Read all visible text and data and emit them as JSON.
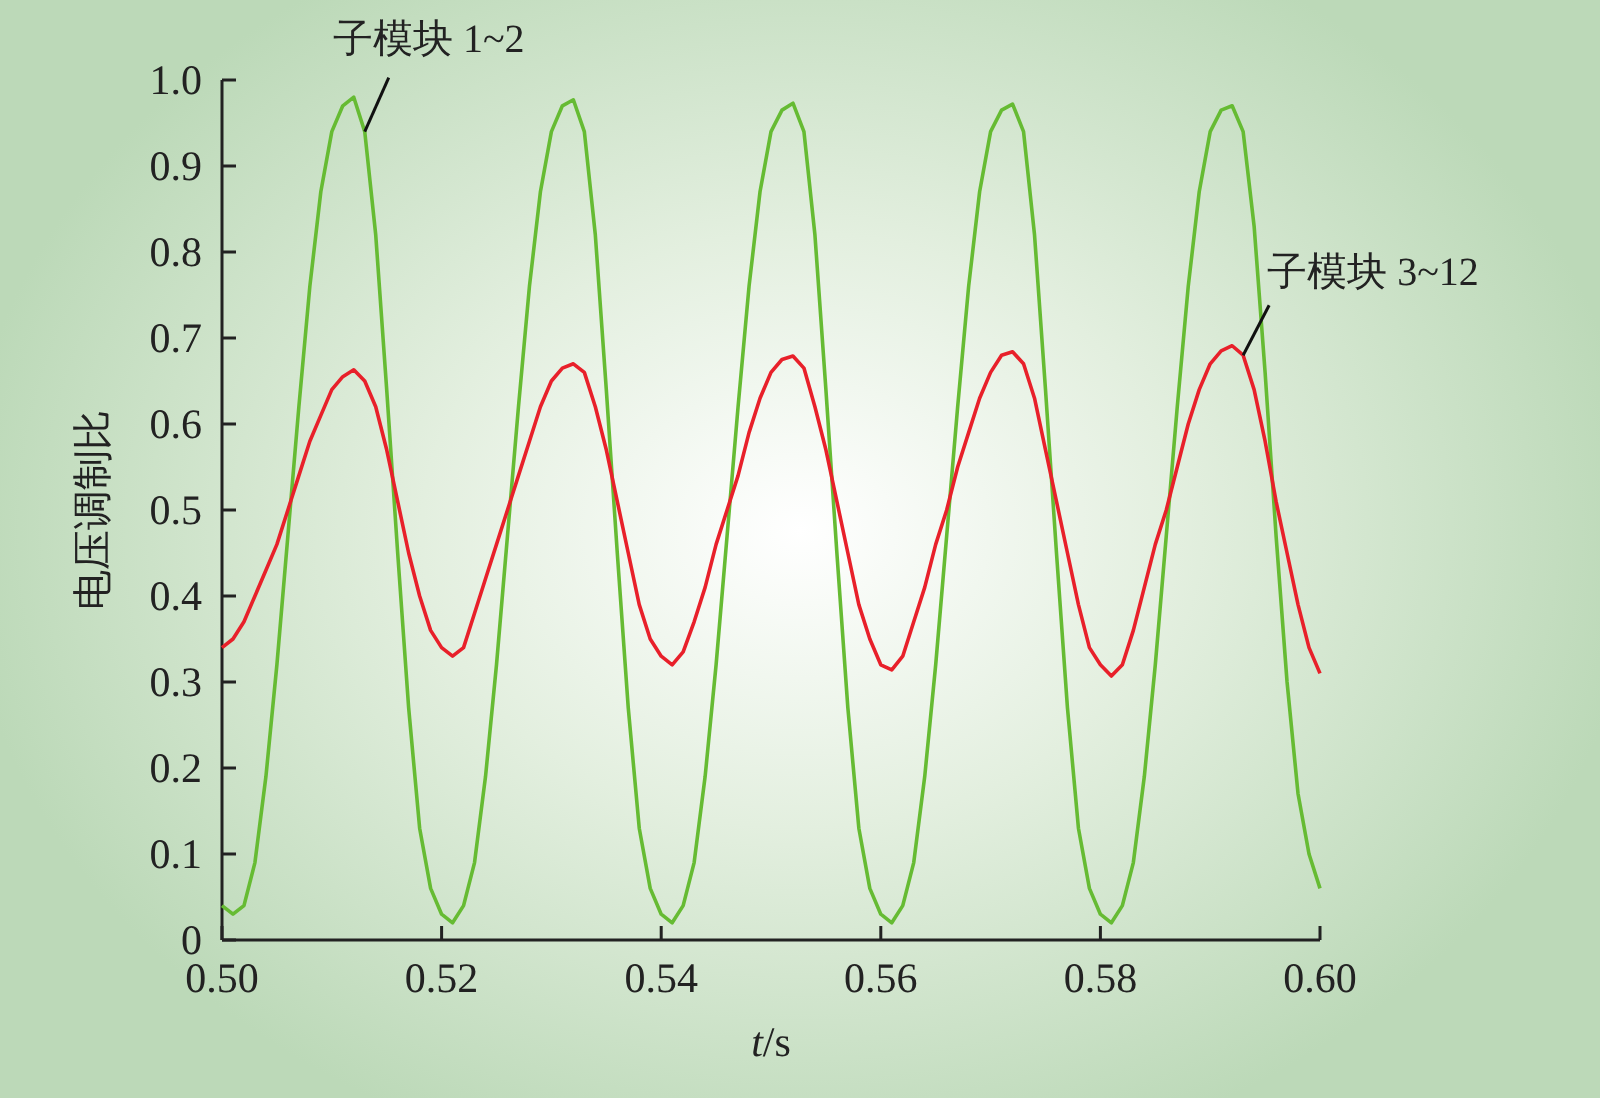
{
  "chart_data": {
    "type": "line",
    "xlabel": "*t*/s",
    "ylabel": "电压调制比",
    "legend": false,
    "grid": false,
    "marker": "none",
    "line_style": "solid",
    "xlim": [
      0.5,
      0.6
    ],
    "xticks": [
      {
        "value": 0.5,
        "label": "0.50"
      },
      {
        "value": 0.52,
        "label": "0.52"
      },
      {
        "value": 0.54,
        "label": "0.54"
      },
      {
        "value": 0.56,
        "label": "0.56"
      },
      {
        "value": 0.58,
        "label": "0.58"
      },
      {
        "value": 0.6,
        "label": "0.60"
      }
    ],
    "ylim": [
      0,
      1
    ],
    "yticks": [
      0,
      0.1,
      0.2,
      0.3,
      0.4,
      0.5,
      0.6,
      0.7,
      0.8,
      0.9,
      {
        "value": 1,
        "label": "1.0"
      }
    ],
    "x": [
      0.5,
      0.501,
      0.502,
      0.503,
      0.504,
      0.505,
      0.506,
      0.507,
      0.508,
      0.509,
      0.51,
      0.511,
      0.512,
      0.513,
      0.514,
      0.515,
      0.516,
      0.517,
      0.518,
      0.519,
      0.52,
      0.521,
      0.522,
      0.523,
      0.524,
      0.525,
      0.526,
      0.527,
      0.528,
      0.529,
      0.53,
      0.531,
      0.532,
      0.533,
      0.534,
      0.535,
      0.536,
      0.537,
      0.538,
      0.539,
      0.54,
      0.541,
      0.542,
      0.543,
      0.544,
      0.545,
      0.546,
      0.547,
      0.548,
      0.549,
      0.55,
      0.551,
      0.552,
      0.553,
      0.554,
      0.555,
      0.556,
      0.557,
      0.558,
      0.559,
      0.56,
      0.561,
      0.562,
      0.563,
      0.564,
      0.565,
      0.566,
      0.567,
      0.568,
      0.569,
      0.57,
      0.571,
      0.572,
      0.573,
      0.574,
      0.575,
      0.576,
      0.577,
      0.578,
      0.579,
      0.58,
      0.581,
      0.582,
      0.583,
      0.584,
      0.585,
      0.586,
      0.587,
      0.588,
      0.589,
      0.59,
      0.591,
      0.592,
      0.593,
      0.594,
      0.595,
      0.596,
      0.597,
      0.598,
      0.599,
      0.6
    ],
    "series": [
      {
        "name": "子模块 1~2",
        "color": "#66bb33",
        "values": [
          0.04,
          0.03,
          0.04,
          0.09,
          0.19,
          0.32,
          0.47,
          0.62,
          0.76,
          0.87,
          0.94,
          0.97,
          0.98,
          0.94,
          0.82,
          0.64,
          0.45,
          0.27,
          0.13,
          0.06,
          0.03,
          0.02,
          0.04,
          0.09,
          0.19,
          0.32,
          0.47,
          0.62,
          0.76,
          0.87,
          0.94,
          0.97,
          0.977,
          0.94,
          0.82,
          0.64,
          0.45,
          0.27,
          0.13,
          0.06,
          0.03,
          0.02,
          0.04,
          0.09,
          0.19,
          0.32,
          0.47,
          0.62,
          0.76,
          0.87,
          0.94,
          0.965,
          0.973,
          0.94,
          0.82,
          0.64,
          0.45,
          0.27,
          0.13,
          0.06,
          0.03,
          0.02,
          0.04,
          0.09,
          0.19,
          0.32,
          0.47,
          0.62,
          0.76,
          0.87,
          0.94,
          0.965,
          0.972,
          0.94,
          0.82,
          0.64,
          0.45,
          0.27,
          0.13,
          0.06,
          0.03,
          0.02,
          0.04,
          0.09,
          0.19,
          0.32,
          0.47,
          0.62,
          0.76,
          0.87,
          0.94,
          0.965,
          0.97,
          0.94,
          0.83,
          0.66,
          0.47,
          0.3,
          0.17,
          0.1,
          0.06
        ]
      },
      {
        "name": "子模块 3~12",
        "color": "#e8202a",
        "values": [
          0.34,
          0.35,
          0.37,
          0.4,
          0.43,
          0.46,
          0.5,
          0.54,
          0.58,
          0.61,
          0.64,
          0.655,
          0.663,
          0.65,
          0.62,
          0.57,
          0.51,
          0.45,
          0.4,
          0.36,
          0.34,
          0.33,
          0.34,
          0.38,
          0.42,
          0.46,
          0.5,
          0.54,
          0.58,
          0.62,
          0.65,
          0.665,
          0.67,
          0.66,
          0.62,
          0.57,
          0.51,
          0.45,
          0.39,
          0.35,
          0.33,
          0.32,
          0.335,
          0.37,
          0.41,
          0.46,
          0.5,
          0.54,
          0.59,
          0.63,
          0.66,
          0.675,
          0.679,
          0.665,
          0.62,
          0.57,
          0.51,
          0.45,
          0.39,
          0.35,
          0.32,
          0.314,
          0.33,
          0.37,
          0.41,
          0.46,
          0.5,
          0.55,
          0.59,
          0.63,
          0.66,
          0.68,
          0.684,
          0.67,
          0.63,
          0.57,
          0.51,
          0.45,
          0.39,
          0.34,
          0.32,
          0.307,
          0.32,
          0.36,
          0.41,
          0.46,
          0.5,
          0.55,
          0.6,
          0.64,
          0.67,
          0.685,
          0.691,
          0.68,
          0.64,
          0.58,
          0.51,
          0.45,
          0.39,
          0.34,
          0.31
        ]
      }
    ]
  }
}
